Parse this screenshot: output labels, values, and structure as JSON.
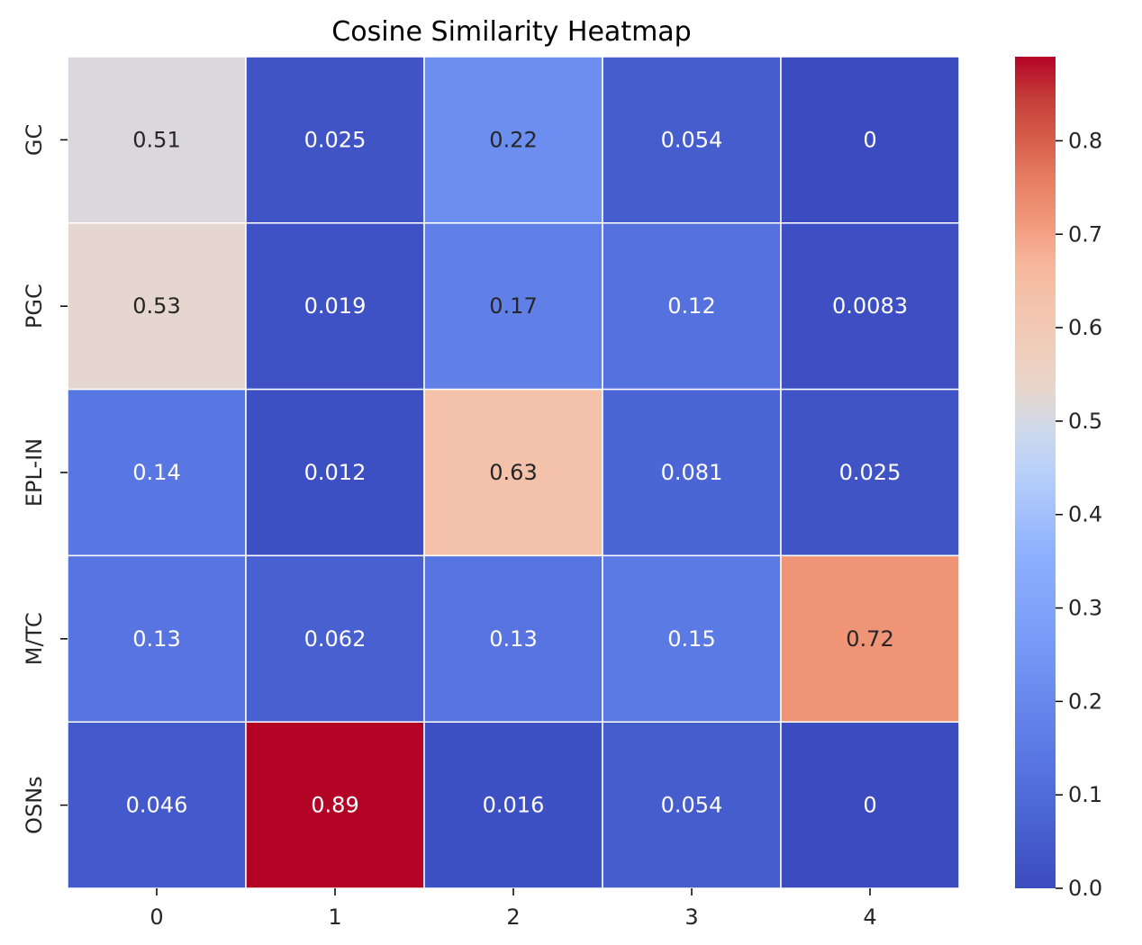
{
  "chart_data": {
    "type": "heatmap",
    "title": "Cosine Similarity Heatmap",
    "xlabel": "",
    "ylabel": "",
    "x_categories": [
      "0",
      "1",
      "2",
      "3",
      "4"
    ],
    "y_categories": [
      "GC",
      "PGC",
      "EPL-IN",
      "M/TC",
      "OSNs"
    ],
    "values": [
      [
        0.51,
        0.025,
        0.22,
        0.054,
        0
      ],
      [
        0.53,
        0.019,
        0.17,
        0.12,
        0.0083
      ],
      [
        0.14,
        0.012,
        0.63,
        0.081,
        0.025
      ],
      [
        0.13,
        0.062,
        0.13,
        0.15,
        0.72
      ],
      [
        0.046,
        0.89,
        0.016,
        0.054,
        0
      ]
    ],
    "annotations": [
      [
        "0.51",
        "0.025",
        "0.22",
        "0.054",
        "0"
      ],
      [
        "0.53",
        "0.019",
        "0.17",
        "0.12",
        "0.0083"
      ],
      [
        "0.14",
        "0.012",
        "0.63",
        "0.081",
        "0.025"
      ],
      [
        "0.13",
        "0.062",
        "0.13",
        "0.15",
        "0.72"
      ],
      [
        "0.046",
        "0.89",
        "0.016",
        "0.054",
        "0"
      ]
    ],
    "colormap": "coolwarm",
    "vmin": 0,
    "vmax": 0.89,
    "colorbar_ticks": [
      "0.0",
      "0.1",
      "0.2",
      "0.3",
      "0.4",
      "0.5",
      "0.6",
      "0.7",
      "0.8"
    ],
    "colorbar_tick_values": [
      0,
      0.1,
      0.2,
      0.3,
      0.4,
      0.5,
      0.6,
      0.7,
      0.8
    ],
    "cell_border_color": "#ffffff",
    "text_dark_color": "#262626",
    "text_light_color": "#ffffff"
  }
}
